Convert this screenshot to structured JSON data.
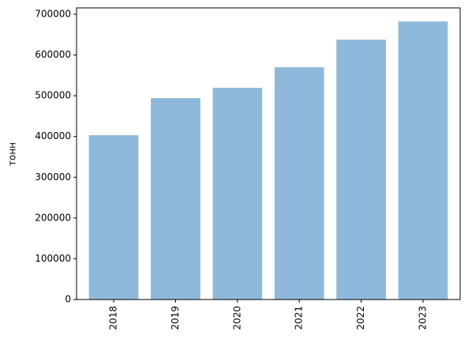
{
  "chart_data": {
    "type": "bar",
    "y_label": "тонн",
    "categories": [
      "2018",
      "2019",
      "2020",
      "2021",
      "2022",
      "2023"
    ],
    "values": [
      403100,
      494200,
      519400,
      569800,
      637600,
      682200
    ],
    "color": "#8fb9da",
    "ylim": [
      0,
      715500
    ],
    "yticks": [
      0,
      100000,
      200000,
      300000,
      400000,
      500000,
      600000,
      700000
    ],
    "grid": false
  }
}
